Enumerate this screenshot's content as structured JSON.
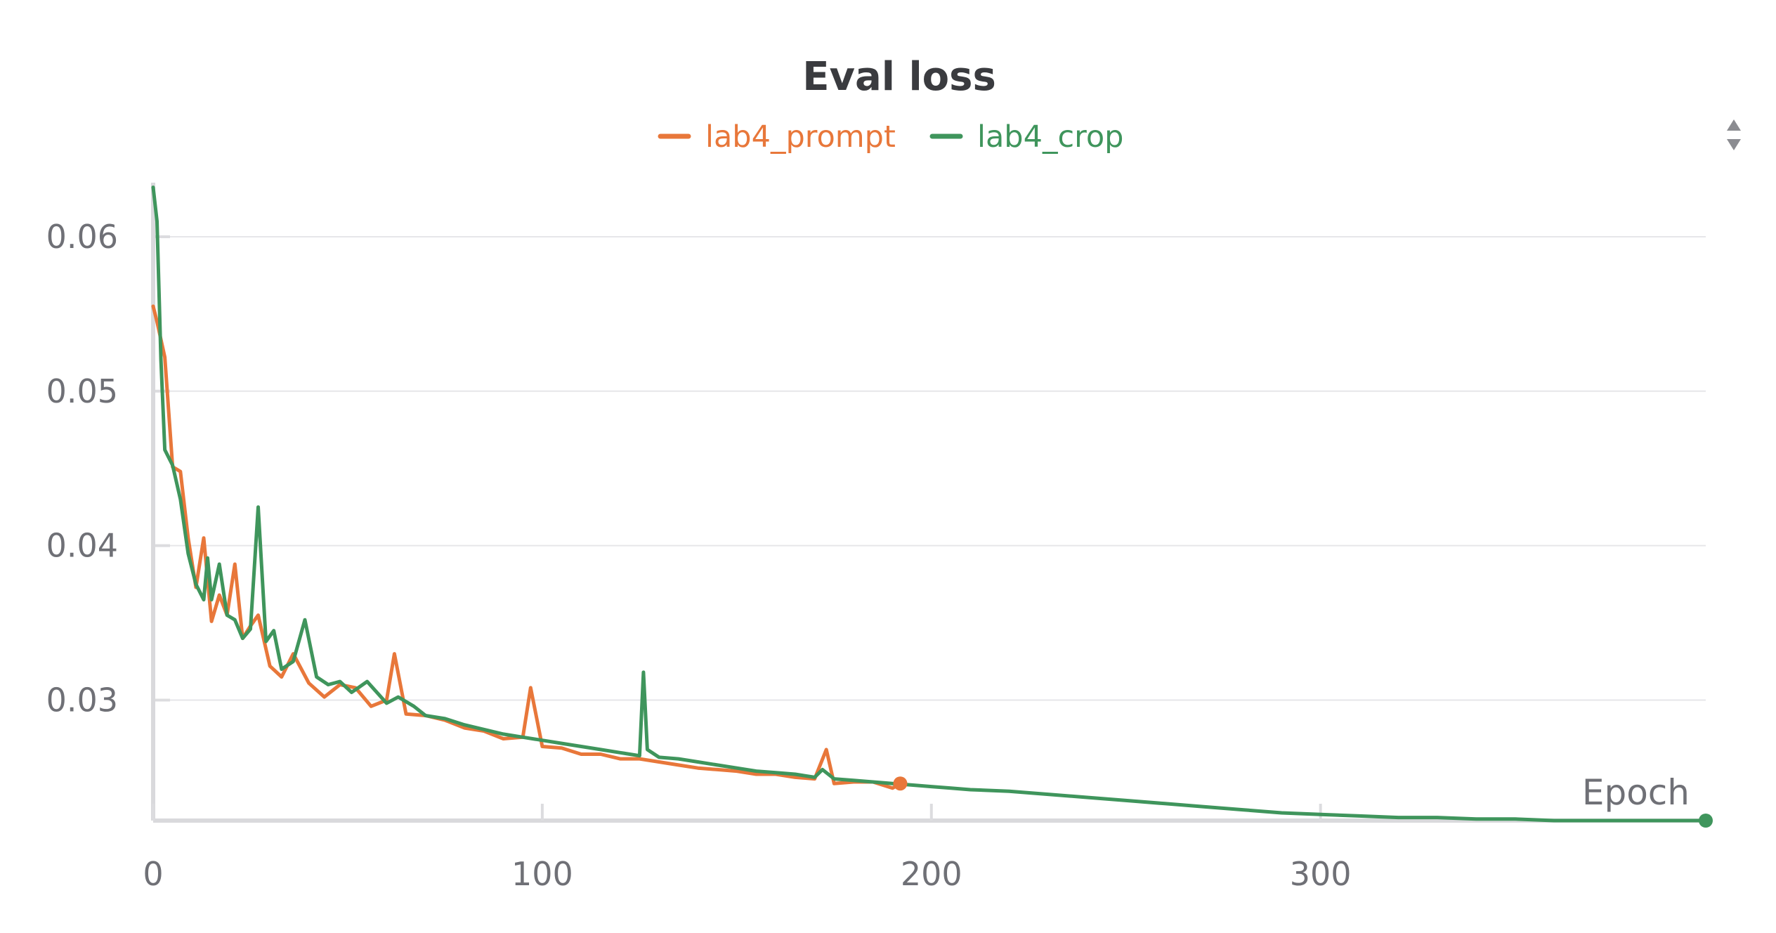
{
  "chart_data": {
    "type": "line",
    "title": "Eval loss",
    "xlabel": "Epoch",
    "ylabel": "",
    "xlim": [
      0,
      399
    ],
    "ylim": [
      0.0222,
      0.0635
    ],
    "x_ticks": [
      0,
      100,
      200,
      300
    ],
    "x_tick_labels": [
      "0",
      "100",
      "200",
      "300"
    ],
    "y_ticks": [
      0.03,
      0.04,
      0.05,
      0.06
    ],
    "y_tick_labels": [
      "0.03",
      "0.04",
      "0.05",
      "0.06"
    ],
    "grid": true,
    "legend_position": "top-center",
    "series": [
      {
        "name": "lab4_prompt",
        "color": "#e8773a",
        "x": [
          0,
          1,
          3,
          5,
          7,
          9,
          11,
          13,
          15,
          17,
          19,
          21,
          23,
          25,
          27,
          30,
          33,
          36,
          40,
          44,
          48,
          52,
          56,
          60,
          62,
          65,
          70,
          75,
          80,
          85,
          90,
          95,
          97,
          100,
          105,
          110,
          115,
          120,
          125,
          130,
          135,
          140,
          145,
          150,
          155,
          160,
          165,
          170,
          173,
          175,
          180,
          185,
          190,
          192
        ],
        "y": [
          0.0555,
          0.0545,
          0.0522,
          0.0451,
          0.0448,
          0.0405,
          0.0373,
          0.0405,
          0.0351,
          0.0368,
          0.0355,
          0.0388,
          0.034,
          0.0348,
          0.0355,
          0.0322,
          0.0315,
          0.033,
          0.0311,
          0.0302,
          0.031,
          0.0308,
          0.0296,
          0.03,
          0.033,
          0.0291,
          0.029,
          0.0287,
          0.0282,
          0.028,
          0.0275,
          0.0276,
          0.0308,
          0.027,
          0.0269,
          0.0265,
          0.0265,
          0.0262,
          0.0262,
          0.026,
          0.0258,
          0.0256,
          0.0255,
          0.0254,
          0.0252,
          0.0252,
          0.025,
          0.0249,
          0.0268,
          0.0246,
          0.0247,
          0.0247,
          0.0243,
          0.0246
        ]
      },
      {
        "name": "lab4_crop",
        "color": "#3f955c",
        "x": [
          0,
          1,
          2,
          3,
          5,
          7,
          9,
          11,
          13,
          14,
          15,
          17,
          19,
          21,
          23,
          25,
          27,
          29,
          31,
          33,
          36,
          39,
          42,
          45,
          48,
          51,
          55,
          60,
          63,
          67,
          70,
          75,
          80,
          85,
          90,
          95,
          100,
          105,
          110,
          115,
          120,
          125,
          126,
          127,
          130,
          135,
          140,
          145,
          150,
          155,
          160,
          165,
          170,
          172,
          175,
          180,
          185,
          190,
          195,
          200,
          205,
          210,
          220,
          230,
          240,
          250,
          260,
          270,
          280,
          290,
          300,
          310,
          320,
          330,
          340,
          350,
          360,
          370,
          380,
          390,
          399
        ],
        "y": [
          0.0632,
          0.061,
          0.052,
          0.0462,
          0.0452,
          0.043,
          0.0395,
          0.0375,
          0.0365,
          0.0392,
          0.0365,
          0.0388,
          0.0355,
          0.0352,
          0.034,
          0.0346,
          0.0425,
          0.0338,
          0.0345,
          0.032,
          0.0325,
          0.0352,
          0.0315,
          0.031,
          0.0312,
          0.0305,
          0.0312,
          0.0298,
          0.0302,
          0.0296,
          0.029,
          0.0288,
          0.0284,
          0.0281,
          0.0278,
          0.0276,
          0.0274,
          0.0272,
          0.027,
          0.0268,
          0.0266,
          0.0264,
          0.0318,
          0.0268,
          0.0263,
          0.0262,
          0.026,
          0.0258,
          0.0256,
          0.0254,
          0.0253,
          0.0252,
          0.025,
          0.0255,
          0.0249,
          0.0248,
          0.0247,
          0.0246,
          0.0245,
          0.0244,
          0.0243,
          0.0242,
          0.0241,
          0.0239,
          0.0237,
          0.0235,
          0.0233,
          0.0231,
          0.0229,
          0.0227,
          0.0226,
          0.0225,
          0.0224,
          0.0224,
          0.0223,
          0.0223,
          0.0222,
          0.0222,
          0.0222,
          0.0222,
          0.0222
        ]
      }
    ]
  }
}
